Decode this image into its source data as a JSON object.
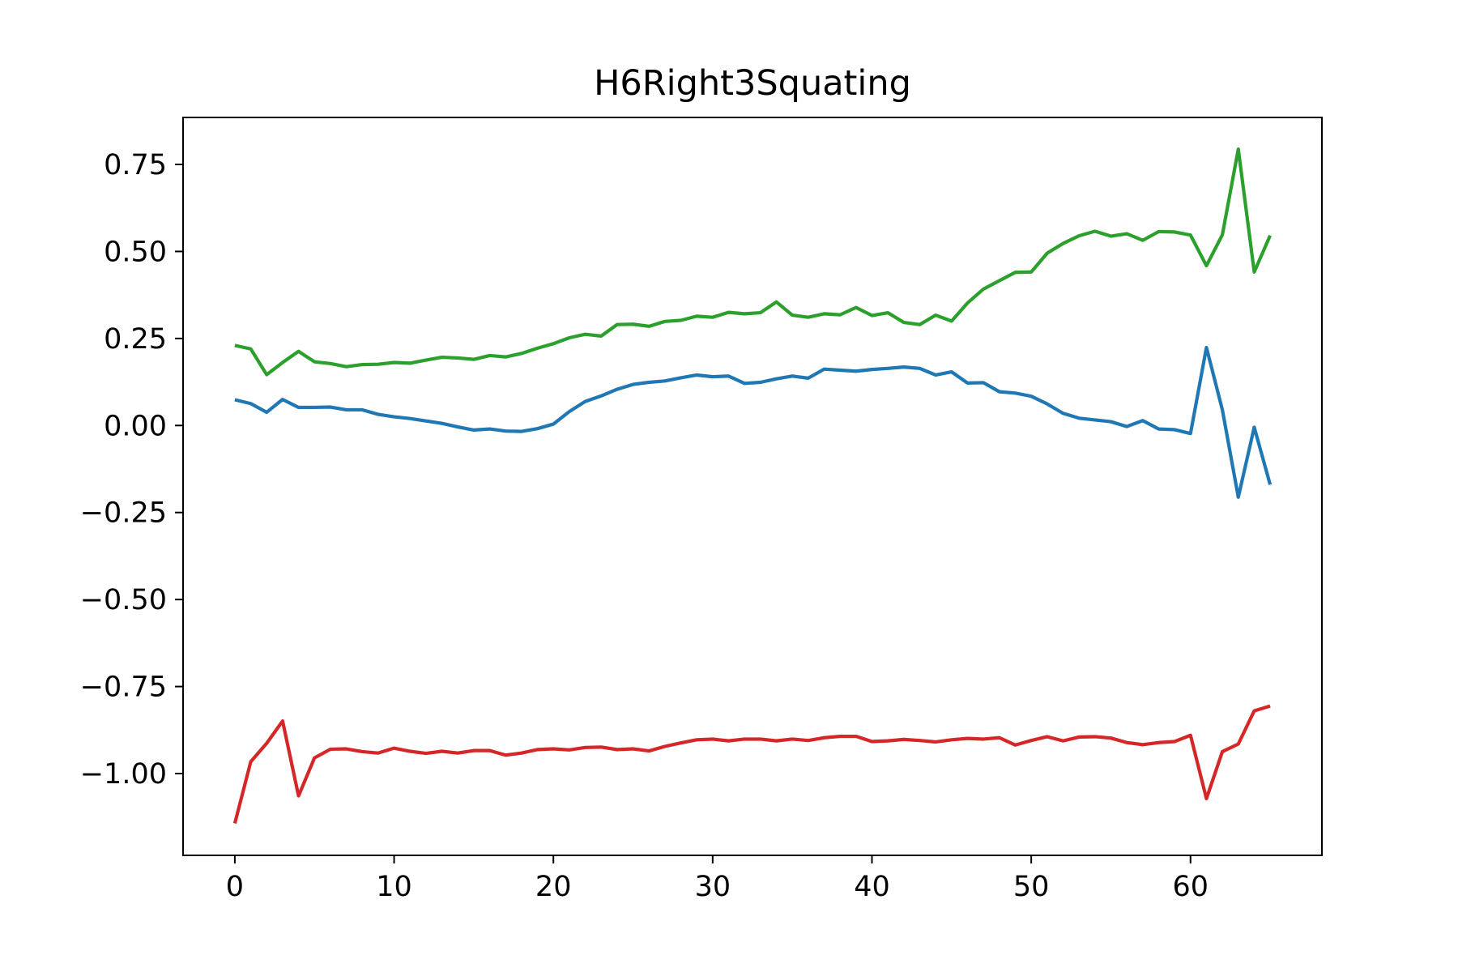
{
  "chart_data": {
    "type": "line",
    "title": "H6Right3Squating",
    "xlabel": "",
    "ylabel": "",
    "xlim": [
      -3.25,
      68.25
    ],
    "ylim": [
      -1.235,
      0.885
    ],
    "x_ticks": [
      0,
      10,
      20,
      30,
      40,
      50,
      60
    ],
    "x_tick_labels": [
      "0",
      "10",
      "20",
      "30",
      "40",
      "50",
      "60"
    ],
    "y_ticks": [
      0.75,
      0.5,
      0.25,
      0.0,
      -0.25,
      -0.5,
      -0.75,
      -1.0
    ],
    "y_tick_labels": [
      "0.75",
      "0.50",
      "0.25",
      "0.00",
      "−0.25",
      "−0.50",
      "−0.75",
      "−1.00"
    ],
    "grid": false,
    "legend": "none",
    "x": [
      0,
      1,
      2,
      3,
      4,
      5,
      6,
      7,
      8,
      9,
      10,
      11,
      12,
      13,
      14,
      15,
      16,
      17,
      18,
      19,
      20,
      21,
      22,
      23,
      24,
      25,
      26,
      27,
      28,
      29,
      30,
      31,
      32,
      33,
      34,
      35,
      36,
      37,
      38,
      39,
      40,
      41,
      42,
      43,
      44,
      45,
      46,
      47,
      48,
      49,
      50,
      51,
      52,
      53,
      54,
      55,
      56,
      57,
      58,
      59,
      60,
      61,
      62,
      63,
      64,
      65
    ],
    "series": [
      {
        "color": "#1f77b4",
        "values": [
          0.074,
          0.063,
          0.038,
          0.075,
          0.052,
          0.052,
          0.053,
          0.045,
          0.045,
          0.032,
          0.025,
          0.02,
          0.013,
          0.006,
          -0.004,
          -0.013,
          -0.01,
          -0.016,
          -0.017,
          -0.009,
          0.004,
          0.04,
          0.069,
          0.085,
          0.104,
          0.118,
          0.124,
          0.128,
          0.137,
          0.145,
          0.14,
          0.142,
          0.121,
          0.124,
          0.134,
          0.142,
          0.136,
          0.162,
          0.159,
          0.156,
          0.161,
          0.164,
          0.168,
          0.164,
          0.145,
          0.154,
          0.122,
          0.123,
          0.097,
          0.093,
          0.084,
          0.062,
          0.035,
          0.021,
          0.016,
          0.011,
          -0.003,
          0.014,
          -0.01,
          -0.012,
          -0.023,
          0.224,
          0.045,
          -0.206,
          -0.005,
          -0.17
        ]
      },
      {
        "color": "#2ca02c",
        "values": [
          0.23,
          0.22,
          0.146,
          0.181,
          0.213,
          0.183,
          0.178,
          0.169,
          0.175,
          0.176,
          0.181,
          0.179,
          0.188,
          0.196,
          0.194,
          0.19,
          0.201,
          0.197,
          0.207,
          0.222,
          0.235,
          0.252,
          0.262,
          0.257,
          0.29,
          0.291,
          0.285,
          0.299,
          0.302,
          0.314,
          0.311,
          0.325,
          0.321,
          0.324,
          0.355,
          0.317,
          0.311,
          0.321,
          0.318,
          0.339,
          0.316,
          0.324,
          0.296,
          0.29,
          0.317,
          0.3,
          0.352,
          0.392,
          0.416,
          0.44,
          0.441,
          0.495,
          0.523,
          0.545,
          0.558,
          0.544,
          0.551,
          0.532,
          0.557,
          0.556,
          0.547,
          0.459,
          0.548,
          0.794,
          0.441,
          0.546
        ]
      },
      {
        "color": "#d62728",
        "values": [
          -1.143,
          -0.966,
          -0.913,
          -0.849,
          -1.064,
          -0.955,
          -0.93,
          -0.929,
          -0.937,
          -0.941,
          -0.927,
          -0.936,
          -0.942,
          -0.936,
          -0.941,
          -0.934,
          -0.934,
          -0.947,
          -0.941,
          -0.931,
          -0.929,
          -0.932,
          -0.925,
          -0.924,
          -0.931,
          -0.929,
          -0.935,
          -0.922,
          -0.912,
          -0.903,
          -0.901,
          -0.906,
          -0.901,
          -0.901,
          -0.906,
          -0.901,
          -0.905,
          -0.897,
          -0.893,
          -0.893,
          -0.908,
          -0.906,
          -0.902,
          -0.905,
          -0.909,
          -0.903,
          -0.899,
          -0.901,
          -0.897,
          -0.918,
          -0.905,
          -0.894,
          -0.906,
          -0.895,
          -0.894,
          -0.898,
          -0.911,
          -0.917,
          -0.911,
          -0.908,
          -0.89,
          -1.072,
          -0.937,
          -0.915,
          -0.82,
          -0.806
        ]
      }
    ]
  }
}
